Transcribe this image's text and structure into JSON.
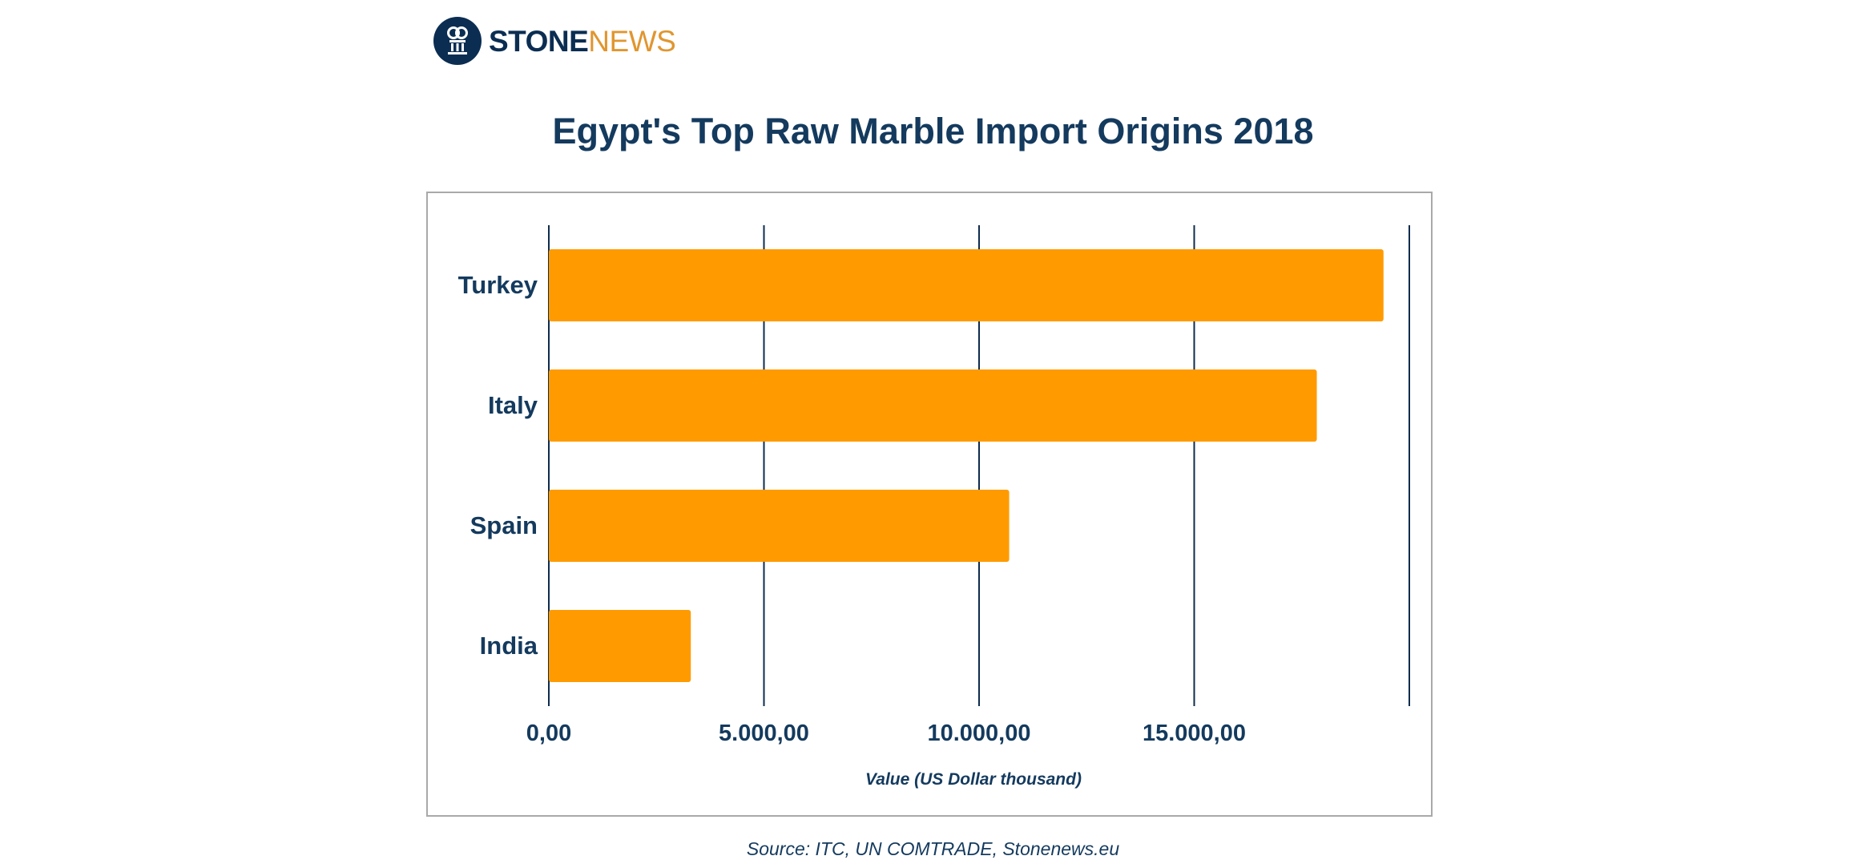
{
  "brand": {
    "name_part1": "STONE",
    "name_part2": "NEWS"
  },
  "colors": {
    "bar": "#ff9b00",
    "text": "#143a5e",
    "grid": "#0e2c4e",
    "frame": "#a9a9a9"
  },
  "chart_data": {
    "type": "bar",
    "orientation": "horizontal",
    "title": "Egypt's Top Raw Marble Import Origins 2018",
    "categories": [
      "Turkey",
      "Italy",
      "Spain",
      "India"
    ],
    "values": [
      19400,
      17850,
      10700,
      3300
    ],
    "xlabel": "Value (US Dollar thousand)",
    "xlim": [
      0,
      20000
    ],
    "xticks": [
      0,
      5000,
      10000,
      15000
    ],
    "xtick_labels": [
      "0,00",
      "5.000,00",
      "10.000,00",
      "15.000,00"
    ],
    "grid": true,
    "source": "Source: ITC, UN COMTRADE, Stonenews.eu"
  }
}
